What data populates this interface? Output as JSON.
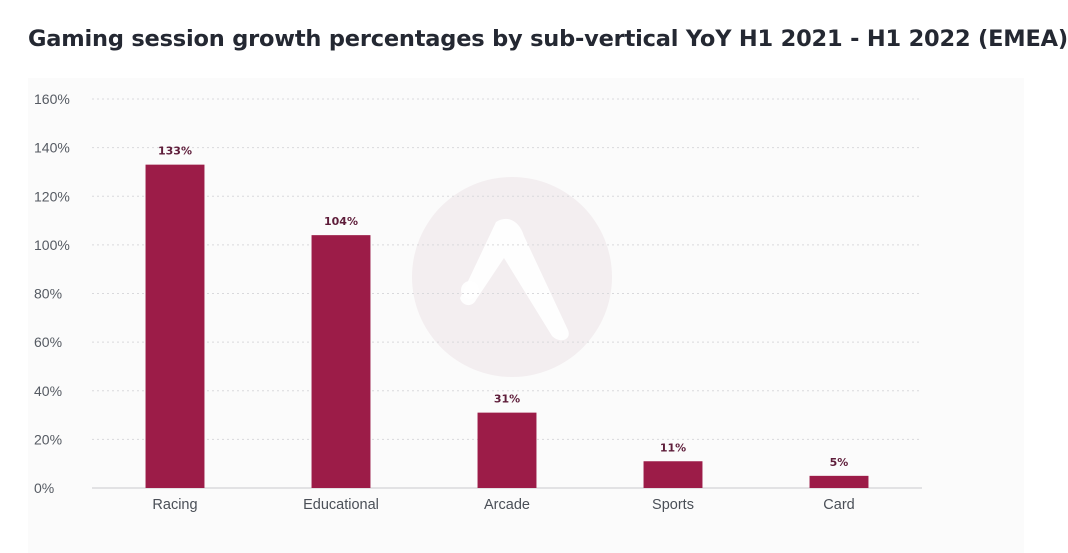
{
  "chart_data": {
    "type": "bar",
    "title": "Gaming session growth percentages by sub-vertical YoY H1 2021 - H1 2022 (EMEA)",
    "xlabel": "",
    "ylabel": "",
    "categories": [
      "Racing",
      "Educational",
      "Arcade",
      "Sports",
      "Card"
    ],
    "values": [
      133,
      104,
      31,
      11,
      5
    ],
    "data_labels": [
      "133%",
      "104%",
      "31%",
      "11%",
      "5%"
    ],
    "y_ticks": [
      0,
      20,
      40,
      60,
      80,
      100,
      120,
      140,
      160
    ],
    "y_tick_labels": [
      "0%",
      "20%",
      "40%",
      "60%",
      "80%",
      "100%",
      "120%",
      "140%",
      "160%"
    ],
    "ylim": [
      0,
      160
    ],
    "grid": true,
    "legend": "none",
    "colors": {
      "bar": "#9c1c48",
      "grid": "#d9d9dc",
      "axis": "#c9c9cc",
      "watermark": "#f3eef0"
    }
  }
}
